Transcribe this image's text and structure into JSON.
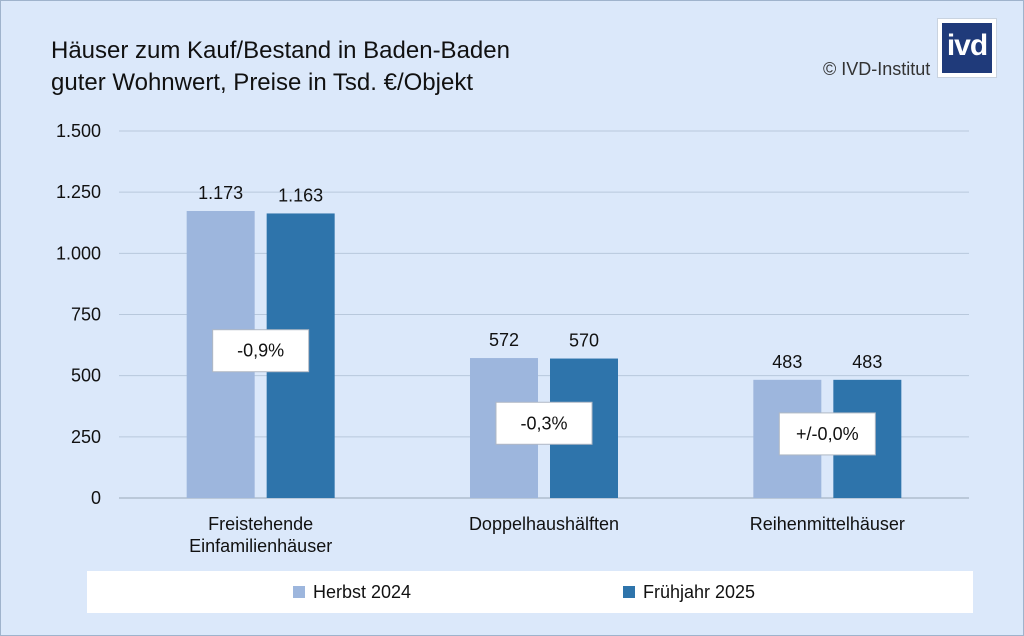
{
  "header": {
    "title_line1": "Häuser zum Kauf/Bestand in Baden-Baden",
    "title_line2": "guter Wohnwert, Preise in Tsd. €/Objekt",
    "copyright": "© IVD-Institut",
    "logo_text": "ivd"
  },
  "colors": {
    "background": "#dbe8fa",
    "series_1": "#9db6dd",
    "series_2": "#2e74ab",
    "gridline": "#b8c8dc"
  },
  "chart_data": {
    "type": "bar",
    "categories": [
      [
        "Freistehende",
        "Einfamilienhäuser"
      ],
      [
        "Doppelhaushälften"
      ],
      [
        "Reihenmittelhäuser"
      ]
    ],
    "series": [
      {
        "name": "Herbst 2024",
        "values": [
          1173,
          572,
          483
        ],
        "labels": [
          "1.173",
          "572",
          "483"
        ]
      },
      {
        "name": "Frühjahr 2025",
        "values": [
          1163,
          570,
          483
        ],
        "labels": [
          "1.163",
          "570",
          "483"
        ]
      }
    ],
    "change_labels": [
      "-0,9%",
      "-0,3%",
      "+/-0,0%"
    ],
    "ylim": [
      0,
      1500
    ],
    "yticks": [
      0,
      250,
      500,
      750,
      1000,
      1250,
      1500
    ],
    "ytick_labels": [
      "0",
      "250",
      "500",
      "750",
      "1.000",
      "1.250",
      "1.500"
    ],
    "grid": true,
    "legend_position": "bottom",
    "xlabel": "",
    "ylabel": ""
  }
}
